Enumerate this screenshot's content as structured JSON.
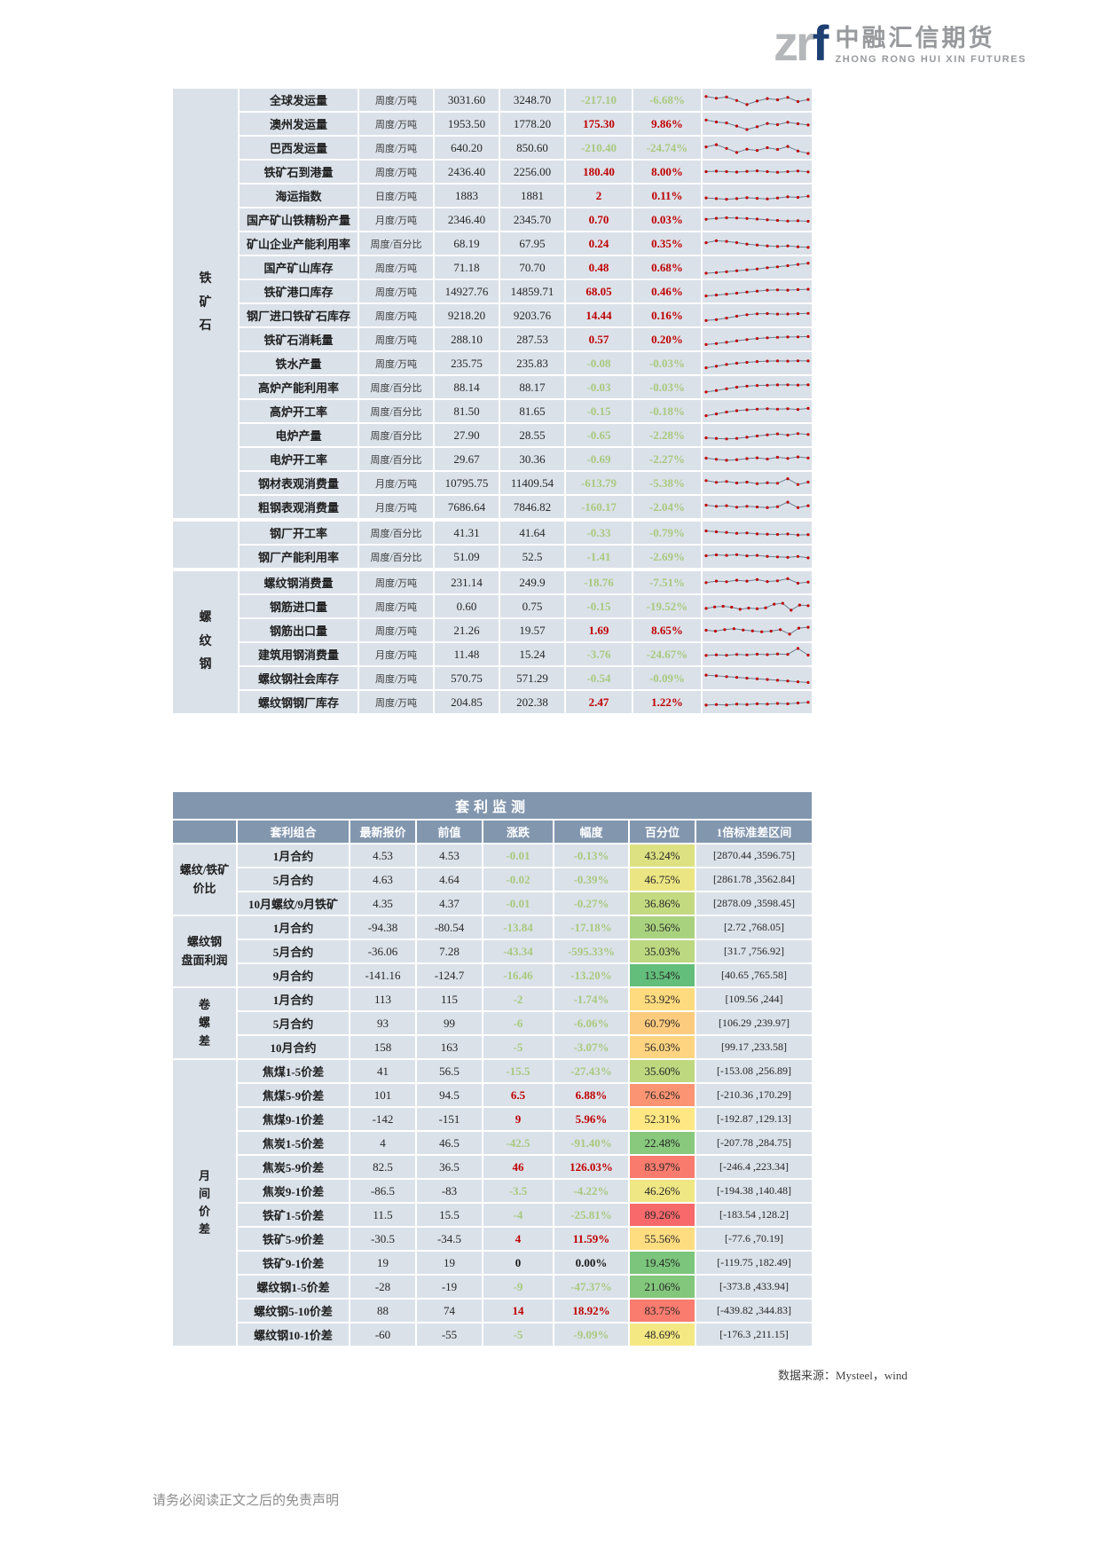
{
  "logo": {
    "zr": "zr",
    "f": "f",
    "brand_cn": "中融汇信期货",
    "brand_en": "ZHONG RONG HUI XIN FUTURES"
  },
  "colors": {
    "up": "#C00000",
    "down": "#A9C97E",
    "flat": "#1A1A1A",
    "cell_bg": "#DAE1E9",
    "header_bg": "#8296AE",
    "spark_line": "#6E7F92",
    "spark_dot": "#C00000"
  },
  "indicator_table": {
    "sections": [
      {
        "label": "铁\n矿\n石",
        "rows": [
          {
            "name": "全球发运量",
            "freq": "周度/万吨",
            "current": "3031.60",
            "prev": "3248.70",
            "change": "-217.10",
            "pct": "-6.68%",
            "dir": "down",
            "spark": [
              72,
              60,
              68,
              45,
              18,
              42,
              58,
              50,
              66,
              38,
              52
            ]
          },
          {
            "name": "澳州发运量",
            "freq": "周度/万吨",
            "current": "1953.50",
            "prev": "1778.20",
            "change": "175.30",
            "pct": "9.86%",
            "dir": "up",
            "spark": [
              75,
              62,
              55,
              35,
              12,
              30,
              52,
              44,
              60,
              50,
              42
            ]
          },
          {
            "name": "巴西发运量",
            "freq": "周度/万吨",
            "current": "640.20",
            "prev": "850.60",
            "change": "-210.40",
            "pct": "-24.74%",
            "dir": "down",
            "spark": [
              55,
              70,
              45,
              18,
              40,
              32,
              50,
              38,
              58,
              28,
              12
            ]
          },
          {
            "name": "铁矿石到港量",
            "freq": "周度/万吨",
            "current": "2436.40",
            "prev": "2256.00",
            "change": "180.40",
            "pct": "8.00%",
            "dir": "up",
            "spark": [
              50,
              53,
              50,
              47,
              52,
              55,
              50,
              46,
              50,
              54,
              48
            ]
          },
          {
            "name": "海运指数",
            "freq": "日度/万吨",
            "current": "1883",
            "prev": "1881",
            "change": "2",
            "pct": "0.11%",
            "dir": "up",
            "spark": [
              35,
              30,
              26,
              30,
              36,
              32,
              28,
              34,
              42,
              38,
              46
            ]
          },
          {
            "name": "国产矿山铁精粉产量",
            "freq": "月度/万吨",
            "current": "2346.40",
            "prev": "2345.70",
            "change": "0.70",
            "pct": "0.03%",
            "dir": "up",
            "spark": [
              52,
              58,
              62,
              60,
              57,
              53,
              48,
              44,
              40,
              42,
              38
            ]
          },
          {
            "name": "矿山企业产能利用率",
            "freq": "周度/百分比",
            "current": "68.19",
            "prev": "67.95",
            "change": "0.24",
            "pct": "0.35%",
            "dir": "up",
            "spark": [
              55,
              68,
              64,
              56,
              46,
              40,
              34,
              30,
              34,
              28,
              24
            ]
          },
          {
            "name": "国产矿山库存",
            "freq": "周度/万吨",
            "current": "71.18",
            "prev": "70.70",
            "change": "0.48",
            "pct": "0.68%",
            "dir": "up",
            "spark": [
              12,
              16,
              22,
              28,
              34,
              40,
              48,
              54,
              62,
              70,
              78
            ]
          },
          {
            "name": "铁矿港口库存",
            "freq": "周度/万吨",
            "current": "14927.76",
            "prev": "14859.71",
            "change": "68.05",
            "pct": "0.46%",
            "dir": "up",
            "spark": [
              20,
              26,
              32,
              38,
              46,
              52,
              58,
              60,
              58,
              62,
              64
            ]
          },
          {
            "name": "钢厂进口铁矿石库存",
            "freq": "周度/万吨",
            "current": "9218.20",
            "prev": "9203.76",
            "change": "14.44",
            "pct": "0.16%",
            "dir": "up",
            "spark": [
              16,
              22,
              32,
              44,
              54,
              60,
              62,
              58,
              59,
              61,
              63
            ]
          },
          {
            "name": "铁矿石消耗量",
            "freq": "周度/万吨",
            "current": "288.10",
            "prev": "287.53",
            "change": "0.57",
            "pct": "0.20%",
            "dir": "up",
            "spark": [
              15,
              22,
              30,
              40,
              48,
              55,
              60,
              63,
              65,
              66,
              68
            ]
          },
          {
            "name": "铁水产量",
            "freq": "周度/万吨",
            "current": "235.75",
            "prev": "235.83",
            "change": "-0.08",
            "pct": "-0.03%",
            "dir": "down",
            "spark": [
              20,
              30,
              42,
              50,
              56,
              61,
              64,
              65,
              64,
              66,
              65
            ]
          },
          {
            "name": "高炉产能利用率",
            "freq": "周度/百分比",
            "current": "88.14",
            "prev": "88.17",
            "change": "-0.03",
            "pct": "-0.03%",
            "dir": "down",
            "spark": [
              18,
              28,
              40,
              50,
              57,
              61,
              63,
              65,
              66,
              64,
              66
            ]
          },
          {
            "name": "高炉开工率",
            "freq": "周度/百分比",
            "current": "81.50",
            "prev": "81.65",
            "change": "-0.15",
            "pct": "-0.18%",
            "dir": "down",
            "spark": [
              20,
              32,
              44,
              53,
              59,
              63,
              66,
              63,
              66,
              61,
              68
            ]
          },
          {
            "name": "电炉产量",
            "freq": "周度/百分比",
            "current": "27.90",
            "prev": "28.55",
            "change": "-0.65",
            "pct": "-2.28%",
            "dir": "down",
            "spark": [
              32,
              28,
              25,
              28,
              36,
              44,
              52,
              58,
              50,
              60,
              54
            ]
          },
          {
            "name": "电炉开工率",
            "freq": "周度/百分比",
            "current": "29.67",
            "prev": "30.36",
            "change": "-0.69",
            "pct": "-2.27%",
            "dir": "down",
            "spark": [
              56,
              48,
              42,
              46,
              53,
              58,
              50,
              62,
              54,
              64,
              57
            ]
          },
          {
            "name": "钢材表观消费量",
            "freq": "月度/万吨",
            "current": "10795.75",
            "prev": "11409.54",
            "change": "-613.79",
            "pct": "-5.38%",
            "dir": "down",
            "spark": [
              66,
              54,
              60,
              50,
              56,
              46,
              52,
              48,
              78,
              40,
              56
            ]
          },
          {
            "name": "粗钢表观消费量",
            "freq": "月度/万吨",
            "current": "7686.64",
            "prev": "7846.82",
            "change": "-160.17",
            "pct": "-2.04%",
            "dir": "down",
            "spark": [
              62,
              54,
              58,
              48,
              54,
              50,
              46,
              52,
              82,
              46,
              58
            ]
          }
        ]
      },
      {
        "label": "",
        "rows": [
          {
            "name": "钢厂开工率",
            "freq": "周度/百分比",
            "current": "41.31",
            "prev": "41.64",
            "change": "-0.33",
            "pct": "-0.79%",
            "dir": "down",
            "spark": [
              62,
              56,
              52,
              46,
              48,
              42,
              40,
              38,
              41,
              35,
              37
            ]
          },
          {
            "name": "钢厂产能利用率",
            "freq": "周度/百分比",
            "current": "51.09",
            "prev": "52.5",
            "change": "-1.41",
            "pct": "-2.69%",
            "dir": "down",
            "spark": [
              56,
              62,
              58,
              63,
              55,
              58,
              52,
              48,
              45,
              51,
              42
            ]
          }
        ]
      },
      {
        "label": "螺\n纹\n钢",
        "rows": [
          {
            "name": "螺纹钢消费量",
            "freq": "周度/万吨",
            "current": "231.14",
            "prev": "249.9",
            "change": "-18.76",
            "pct": "-7.51%",
            "dir": "down",
            "spark": [
              48,
              58,
              54,
              64,
              58,
              68,
              55,
              60,
              74,
              44,
              52
            ]
          },
          {
            "name": "钢筋进口量",
            "freq": "周度/万吨",
            "current": "0.60",
            "prev": "0.75",
            "change": "-0.15",
            "pct": "-19.52%",
            "dir": "down",
            "spark": [
              36,
              46,
              50,
              44,
              30,
              38,
              34,
              40,
              64,
              70,
              24,
              58,
              54
            ]
          },
          {
            "name": "钢筋出口量",
            "freq": "周度/万吨",
            "current": "21.26",
            "prev": "19.57",
            "change": "1.69",
            "pct": "8.65%",
            "dir": "up",
            "spark": [
              50,
              44,
              54,
              60,
              52,
              46,
              40,
              44,
              54,
              24,
              64,
              70
            ]
          },
          {
            "name": "建筑用钢消费量",
            "freq": "月度/万吨",
            "current": "11.48",
            "prev": "15.24",
            "change": "-3.76",
            "pct": "-24.67%",
            "dir": "down",
            "spark": [
              42,
              46,
              43,
              48,
              45,
              50,
              47,
              52,
              49,
              88,
              44
            ]
          },
          {
            "name": "螺纹钢社会库存",
            "freq": "周度/万吨",
            "current": "570.75",
            "prev": "571.29",
            "change": "-0.54",
            "pct": "-0.09%",
            "dir": "down",
            "spark": [
              70,
              65,
              60,
              55,
              50,
              46,
              41,
              36,
              31,
              26,
              21
            ]
          },
          {
            "name": "螺纹钢钢厂库存",
            "freq": "周度/万吨",
            "current": "204.85",
            "prev": "202.38",
            "change": "2.47",
            "pct": "1.22%",
            "dir": "up",
            "spark": [
              30,
              34,
              31,
              37,
              34,
              39,
              37,
              41,
              39,
              44,
              49
            ]
          }
        ]
      }
    ]
  },
  "arbitrage_table": {
    "title": "套利监测",
    "headers": [
      "套利组合",
      "最新报价",
      "前值",
      "涨跌",
      "幅度",
      "百分位",
      "1倍标准差区间"
    ],
    "groups": [
      {
        "label": "螺纹/铁矿\n价比",
        "rows": [
          {
            "combo": "1月合约",
            "last": "4.53",
            "prev": "4.53",
            "change": "-0.01",
            "pct": "-0.13%",
            "percentile": "43.24%",
            "percentile_color": "#DDE182",
            "band": "[2870.44 ,3596.75]",
            "dir": "down"
          },
          {
            "combo": "5月合约",
            "last": "4.63",
            "prev": "4.64",
            "change": "-0.02",
            "pct": "-0.39%",
            "percentile": "46.75%",
            "percentile_color": "#ECE583",
            "band": "[2861.78 ,3562.84]",
            "dir": "down"
          },
          {
            "combo": "10月螺纹/9月铁矿",
            "last": "4.35",
            "prev": "4.37",
            "change": "-0.01",
            "pct": "-0.27%",
            "percentile": "36.86%",
            "percentile_color": "#C3DA80",
            "band": "[2878.09 ,3598.45]",
            "dir": "down"
          }
        ]
      },
      {
        "label": "螺纹钢\n盘面利润",
        "rows": [
          {
            "combo": "1月合约",
            "last": "-94.38",
            "prev": "-80.54",
            "change": "-13.84",
            "pct": "-17.18%",
            "percentile": "30.56%",
            "percentile_color": "#A9D27F",
            "band": "[2.72 ,768.05]",
            "dir": "down"
          },
          {
            "combo": "5月合约",
            "last": "-36.06",
            "prev": "7.28",
            "change": "-43.34",
            "pct": "-595.33%",
            "percentile": "35.03%",
            "percentile_color": "#BCD880",
            "band": "[31.7 ,756.92]",
            "dir": "down"
          },
          {
            "combo": "9月合约",
            "last": "-141.16",
            "prev": "-124.7",
            "change": "-16.46",
            "pct": "-13.20%",
            "percentile": "13.54%",
            "percentile_color": "#63BE7B",
            "band": "[40.65 ,765.58]",
            "dir": "down"
          }
        ]
      },
      {
        "label": "卷\n螺\n差",
        "rows": [
          {
            "combo": "1月合约",
            "last": "113",
            "prev": "115",
            "change": "-2",
            "pct": "-1.74%",
            "percentile": "53.92%",
            "percentile_color": "#FEDB7E",
            "band": "[109.56 ,244]",
            "dir": "down"
          },
          {
            "combo": "5月合约",
            "last": "93",
            "prev": "99",
            "change": "-6",
            "pct": "-6.06%",
            "percentile": "60.79%",
            "percentile_color": "#FDCB7E",
            "band": "[106.29 ,239.97]",
            "dir": "down"
          },
          {
            "combo": "10月合约",
            "last": "158",
            "prev": "163",
            "change": "-5",
            "pct": "-3.07%",
            "percentile": "56.03%",
            "percentile_color": "#FED481",
            "band": "[99.17 ,233.58]",
            "dir": "down"
          }
        ]
      },
      {
        "label": "月\n间\n价\n差",
        "rows": [
          {
            "combo": "焦煤1-5价差",
            "last": "41",
            "prev": "56.5",
            "change": "-15.5",
            "pct": "-27.43%",
            "percentile": "35.60%",
            "percentile_color": "#BED880",
            "band": "[-153.08 ,256.89]",
            "dir": "down"
          },
          {
            "combo": "焦煤5-9价差",
            "last": "101",
            "prev": "94.5",
            "change": "6.5",
            "pct": "6.88%",
            "percentile": "76.62%",
            "percentile_color": "#FA9473",
            "band": "[-210.36 ,170.29]",
            "dir": "up"
          },
          {
            "combo": "焦煤9-1价差",
            "last": "-142",
            "prev": "-151",
            "change": "9",
            "pct": "5.96%",
            "percentile": "52.31%",
            "percentile_color": "#FFE883",
            "band": "[-192.87 ,129.13]",
            "dir": "up"
          },
          {
            "combo": "焦炭1-5价差",
            "last": "4",
            "prev": "46.5",
            "change": "-42.5",
            "pct": "-91.40%",
            "percentile": "22.48%",
            "percentile_color": "#88C97D",
            "band": "[-207.78 ,284.75]",
            "dir": "down"
          },
          {
            "combo": "焦炭5-9价差",
            "last": "82.5",
            "prev": "36.5",
            "change": "46",
            "pct": "126.03%",
            "percentile": "83.97%",
            "percentile_color": "#F97B6E",
            "band": "[-246.4 ,223.34]",
            "dir": "up"
          },
          {
            "combo": "焦炭9-1价差",
            "last": "-86.5",
            "prev": "-83",
            "change": "-3.5",
            "pct": "-4.22%",
            "percentile": "46.26%",
            "percentile_color": "#EFE684",
            "band": "[-194.38 ,140.48]",
            "dir": "down"
          },
          {
            "combo": "铁矿1-5价差",
            "last": "11.5",
            "prev": "15.5",
            "change": "-4",
            "pct": "-25.81%",
            "percentile": "89.26%",
            "percentile_color": "#F8696B",
            "band": "[-183.54 ,128.2]",
            "dir": "down"
          },
          {
            "combo": "铁矿5-9价差",
            "last": "-30.5",
            "prev": "-34.5",
            "change": "4",
            "pct": "11.59%",
            "percentile": "55.56%",
            "percentile_color": "#FEDD81",
            "band": "[-77.6 ,70.19]",
            "dir": "up"
          },
          {
            "combo": "铁矿9-1价差",
            "last": "19",
            "prev": "19",
            "change": "0",
            "pct": "0.00%",
            "percentile": "19.45%",
            "percentile_color": "#7BC57C",
            "band": "[-119.75 ,182.49]",
            "dir": "flat"
          },
          {
            "combo": "螺纹钢1-5价差",
            "last": "-28",
            "prev": "-19",
            "change": "-9",
            "pct": "-47.37%",
            "percentile": "21.06%",
            "percentile_color": "#82C77C",
            "band": "[-373.8 ,433.94]",
            "dir": "down"
          },
          {
            "combo": "螺纹钢5-10价差",
            "last": "88",
            "prev": "74",
            "change": "14",
            "pct": "18.92%",
            "percentile": "83.75%",
            "percentile_color": "#F97C6F",
            "band": "[-439.82 ,344.83]",
            "dir": "up"
          },
          {
            "combo": "螺纹钢10-1价差",
            "last": "-60",
            "prev": "-55",
            "change": "-5",
            "pct": "-9.09%",
            "percentile": "48.69%",
            "percentile_color": "#F4E883",
            "band": "[-176.3 ,211.15]",
            "dir": "down"
          }
        ]
      }
    ]
  },
  "source_note": "数据来源：Mysteel，wind",
  "footer": "请务必阅读正文之后的免责声明"
}
